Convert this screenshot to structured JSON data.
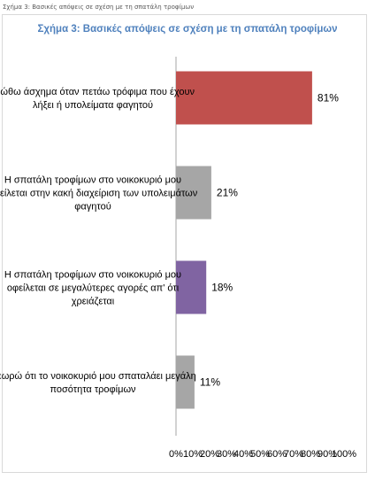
{
  "caption": "Σχήμα 3: Βασικές απόψεις σε σχέση με τη σπατάλη τροφίμων",
  "chart_data": {
    "type": "bar",
    "orientation": "horizontal",
    "title": "Σχήμα 3: Βασικές απόψεις σε σχέση με τη σπατάλη τροφίμων",
    "categories": [
      [
        "Νιώθω άσχημα όταν πετάω τρόφιμα που έχουν",
        "λήξει ή υπολείματα φαγητού"
      ],
      [
        "Η σπατάλη τροφίμων στο νοικοκυριό μου",
        "οφείλεται στην κακή διαχείριση των υπολειμάτων",
        "φαγητού"
      ],
      [
        "Η σπατάλη τροφίμων στο νοικοκυριό μου",
        "οφείλεται σε μεγαλύτερες αγορές απ' ότι",
        "χρειάζεται"
      ],
      [
        "Θεωρώ ότι το νοικοκυριό μου σπαταλάει μεγάλη",
        "ποσότητα τροφίμων"
      ]
    ],
    "values": [
      81,
      21,
      18,
      11
    ],
    "value_labels": [
      "81%",
      "21%",
      "18%",
      "11%"
    ],
    "bar_colors": [
      "#c0504d",
      "#a6a6a6",
      "#8064a2",
      "#a6a6a6"
    ],
    "xlim": [
      0,
      100
    ],
    "x_ticks": [
      "0%",
      "10%",
      "20%",
      "30%",
      "40%",
      "50%",
      "60%",
      "70%",
      "80%",
      "90%",
      "100%"
    ],
    "grid": false,
    "legend": "none",
    "title_color": "#4f81bd"
  }
}
